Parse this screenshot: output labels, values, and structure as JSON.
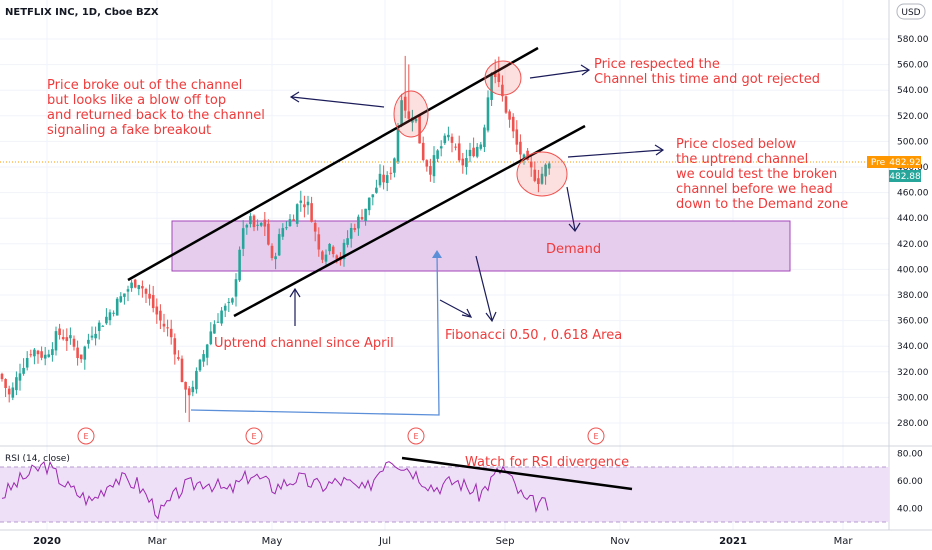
{
  "header": {
    "symbol": "NETFLIX INC, 1D, Cboe BZX",
    "currency_button": "USD"
  },
  "price_axis": {
    "ticks": [
      580,
      560,
      540,
      520,
      500,
      480,
      460,
      440,
      420,
      400,
      380,
      360,
      340,
      320,
      300,
      280
    ],
    "ticks_label": [
      "580.00",
      "560.00",
      "540.00",
      "520.00",
      "500.00",
      "480.00",
      "460.00",
      "440.00",
      "420.00",
      "400.00",
      "380.00",
      "360.00",
      "340.00",
      "320.00",
      "300.00",
      "280.00"
    ],
    "pre_tag": "Pre",
    "pre_value": "482.92",
    "last_value": "482.88",
    "pre_color": "#ff9800",
    "last_color": "#26a69a"
  },
  "rsi_panel": {
    "label": "RSI (14, close)",
    "ticks": [
      "80.00",
      "60.00",
      "40.00"
    ],
    "band_color": "#e8d9f4",
    "line_color": "#9c27b0"
  },
  "time_axis": {
    "labels": [
      "2020",
      "Mar",
      "May",
      "Jul",
      "Sep",
      "Nov",
      "2021",
      "Mar"
    ]
  },
  "earnings_marker": "E",
  "annotations": {
    "fake_breakout": [
      "Price broke out of the channel",
      "but looks like a blow off top",
      "and returned back to the channel",
      "signaling a fake breakout"
    ],
    "respected": [
      "Price respected the",
      "Channel this time and got rejected"
    ],
    "closed_below": [
      "Price closed below",
      "the uptrend channel",
      "we could test the broken",
      "channel before we head",
      "down to the Demand zone"
    ],
    "demand": "Demand",
    "uptrend": "Uptrend channel since April",
    "fibonacci": "Fibonacci 0.50 , 0.618 Area",
    "rsi_divergence": "Watch for RSI divergence"
  },
  "colors": {
    "up": "#26a69a",
    "down": "#ef5350",
    "annotation": "#ef3b3b",
    "demand_fill": "#e1bee7",
    "demand_border": "#9c27b0",
    "arrow": "#1c1c5a",
    "fib_line": "#4a90e2",
    "channel": "#000000"
  },
  "chart_data": [
    {
      "type": "candlestick",
      "title": "NETFLIX INC, 1D, Cboe BZX",
      "x": [
        "2020-01",
        "2020-02",
        "2020-03",
        "2020-04",
        "2020-05",
        "2020-06",
        "2020-07",
        "2020-08",
        "2020-09"
      ],
      "approx_close": [
        330,
        375,
        325,
        420,
        430,
        445,
        500,
        510,
        483
      ],
      "ylim": [
        270,
        590
      ],
      "last_close": 482.88,
      "premarket": 482.92,
      "channel_upper": {
        "from": [
          "2020-02-10",
          392
        ],
        "to": [
          "2020-09-28",
          570
        ]
      },
      "channel_lower": {
        "from": [
          "2020-04-03",
          362
        ],
        "to": [
          "2020-09-30",
          510
        ]
      },
      "demand_zone": [
        398,
        438
      ],
      "swing_low": 290,
      "high_july": 575
    },
    {
      "type": "line",
      "title": "RSI (14, close)",
      "ylim": [
        20,
        85
      ],
      "bands": [
        30,
        70
      ],
      "ticks": [
        80,
        60,
        40
      ],
      "approx_values": [
        48,
        62,
        72,
        55,
        45,
        62,
        58,
        36,
        55,
        60,
        52,
        65,
        55,
        62,
        56,
        60,
        52,
        78,
        68,
        55,
        60,
        50,
        70,
        45,
        42
      ]
    }
  ]
}
